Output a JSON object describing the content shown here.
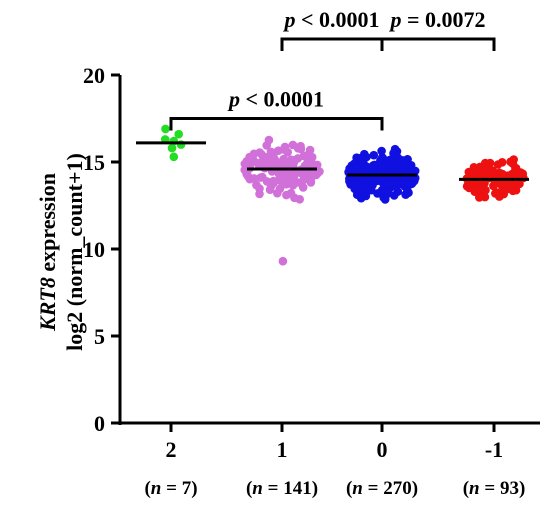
{
  "chart_data": {
    "type": "scatter",
    "ylabel_line1_italic": "KRT8",
    "ylabel_line1_rest": " expression",
    "ylabel_line2": "log2 (norm_count+1)",
    "ylim": [
      0,
      20
    ],
    "yticks": [
      0,
      5,
      10,
      15,
      20
    ],
    "categories": [
      "2",
      "1",
      "0",
      "-1"
    ],
    "n_labels": [
      "(n = 7)",
      "(n = 141)",
      "(n = 270)",
      "(n = 93)"
    ],
    "series": [
      {
        "category": "2",
        "n": 7,
        "color": "#22dd22",
        "mean": 16.1,
        "min": 15.2,
        "max": 17.0
      },
      {
        "category": "1",
        "n": 141,
        "color": "#d070d8",
        "mean": 14.6,
        "min": 12.4,
        "max": 17.3,
        "outliers": [
          9.3
        ]
      },
      {
        "category": "0",
        "n": 270,
        "color": "#1010e0",
        "mean": 14.25,
        "min": 12.0,
        "max": 16.5
      },
      {
        "category": "-1",
        "n": 93,
        "color": "#ee1111",
        "mean": 14.0,
        "min": 11.8,
        "max": 15.7
      }
    ],
    "annotations": [
      {
        "from": "2",
        "to": "0",
        "label_prefix": "p",
        "label_rest": " < 0.0001",
        "level": 17.5
      },
      {
        "from": "1",
        "to": "0",
        "label_prefix": "p",
        "label_rest": " < 0.0001",
        "level": 22
      },
      {
        "from": "0",
        "to": "-1",
        "label_prefix": "p",
        "label_rest": " = 0.0072",
        "level": 22
      }
    ]
  }
}
